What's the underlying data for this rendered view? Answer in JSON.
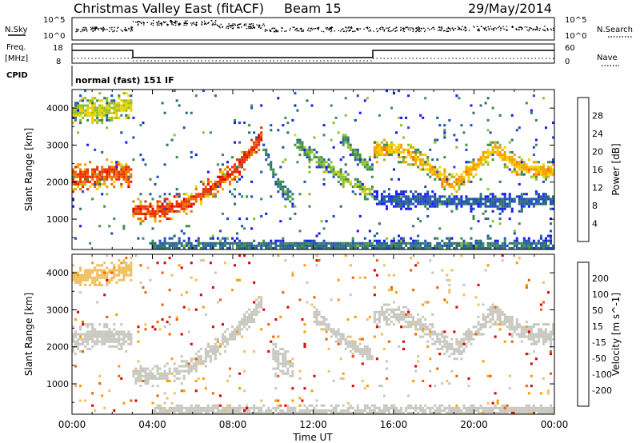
{
  "header": {
    "station": "Christmas Valley East (fitACF)",
    "beam": "Beam 15",
    "date": "29/May/2014"
  },
  "panels": {
    "nsky_label": "N.Sky",
    "nsky_ticks": [
      "10^5",
      "10^0"
    ],
    "nsearch_label": "N.Search",
    "nsearch_ticks": [
      "10^5",
      "10^0"
    ],
    "freq_label_1": "Freq.",
    "freq_label_2": "[MHz]",
    "freq_ticks": [
      "18",
      "8"
    ],
    "nave_label": "Nave",
    "nave_ticks": [
      "60",
      "0"
    ],
    "cpid_label": "CPID",
    "cpid_value": "normal (fast) 151 IF"
  },
  "colors": {
    "power": [
      "#1a1aff",
      "#1f4fc0",
      "#2e6e78",
      "#3f8f4f",
      "#8fc030",
      "#f0d000",
      "#f5a000",
      "#f07000",
      "#e83000",
      "#e00000"
    ],
    "velocity": [
      "#e00000",
      "#f06000",
      "#f5a000",
      "#f0c060",
      "#c8c8c0",
      "#c8c8c0",
      "#80c040",
      "#40a040",
      "#1f60c0",
      "#1a1aa0"
    ]
  },
  "chart_data": [
    {
      "type": "heatmap",
      "title": "Power",
      "ylabel": "Slant Range [km]",
      "colorbar_label": "Power [dB]",
      "colorbar_ticks": [
        "28",
        "24",
        "20",
        "16",
        "12",
        "8",
        "4"
      ],
      "colorbar_range": [
        0,
        32
      ],
      "ylim": [
        180,
        4500
      ],
      "yticks": [
        "4000",
        "3000",
        "2000",
        "1000"
      ],
      "xlim": [
        0,
        24
      ],
      "xticks": [
        "00:00",
        "04:00",
        "08:00",
        "12:00",
        "16:00",
        "20:00",
        "00:00"
      ],
      "xlabel": "",
      "bands": [
        {
          "x": [
            0,
            1,
            2,
            3
          ],
          "y": [
            2100,
            2150,
            2250,
            2150
          ],
          "w": 180,
          "v": 26
        },
        {
          "x": [
            3,
            4,
            5,
            6,
            7,
            8,
            9,
            9.5
          ],
          "y": [
            1250,
            1200,
            1300,
            1500,
            1900,
            2300,
            2900,
            3300
          ],
          "w": 140,
          "v": 27
        },
        {
          "x": [
            9.5,
            10,
            10.5,
            11
          ],
          "y": [
            3000,
            2300,
            1800,
            1500
          ],
          "w": 100,
          "v": 10
        },
        {
          "x": [
            11,
            12,
            13,
            14,
            15
          ],
          "y": [
            3100,
            2700,
            2300,
            1900,
            1700
          ],
          "w": 110,
          "v": 14
        },
        {
          "x": [
            13.5,
            14,
            14.5,
            15
          ],
          "y": [
            3200,
            2800,
            2500,
            2300
          ],
          "w": 90,
          "v": 12
        },
        {
          "x": [
            15,
            16,
            17,
            18,
            19,
            20,
            21,
            22,
            23,
            24
          ],
          "y": [
            2800,
            2900,
            2700,
            2300,
            1900,
            2400,
            2900,
            2500,
            2300,
            2300
          ],
          "w": 130,
          "v": 20
        },
        {
          "x": [
            15,
            18,
            21,
            24
          ],
          "y": [
            1550,
            1500,
            1450,
            1500
          ],
          "w": 120,
          "v": 6
        },
        {
          "x": [
            0,
            1.5,
            3
          ],
          "y": [
            3900,
            3950,
            4100
          ],
          "w": 160,
          "v": 16
        },
        {
          "x": [
            4,
            8,
            12,
            16,
            20,
            24
          ],
          "y": [
            280,
            260,
            250,
            260,
            270,
            280
          ],
          "w": 100,
          "v": 8
        }
      ]
    },
    {
      "type": "heatmap",
      "title": "Velocity",
      "ylabel": "Slant Range [km]",
      "colorbar_label": "Velocity [m s^-1]",
      "colorbar_ticks": [
        "200",
        "100",
        "50",
        "15",
        "-15",
        "-50",
        "-100",
        "-200"
      ],
      "colorbar_range": [
        -250,
        250
      ],
      "ylim": [
        180,
        4500
      ],
      "yticks": [
        "4000",
        "3000",
        "2000",
        "1000"
      ],
      "xlim": [
        0,
        24
      ],
      "xticks": [
        "00:00",
        "04:00",
        "08:00",
        "12:00",
        "16:00",
        "20:00",
        "00:00"
      ],
      "xlabel": "Time UT",
      "bands": [
        {
          "x": [
            0,
            1,
            2,
            3
          ],
          "y": [
            2200,
            2250,
            2300,
            2200
          ],
          "w": 170,
          "v": 0
        },
        {
          "x": [
            3,
            4,
            5,
            6,
            7,
            8,
            9,
            9.5
          ],
          "y": [
            1250,
            1200,
            1300,
            1500,
            1900,
            2300,
            2900,
            3300
          ],
          "w": 130,
          "v": -5
        },
        {
          "x": [
            10,
            10.5,
            11
          ],
          "y": [
            1800,
            1600,
            1400
          ],
          "w": 160,
          "v": 40
        },
        {
          "x": [
            12,
            13,
            14,
            15
          ],
          "y": [
            2900,
            2400,
            2000,
            1700
          ],
          "w": 100,
          "v": 30
        },
        {
          "x": [
            15,
            16,
            17,
            18,
            19,
            20,
            21,
            22,
            23,
            24
          ],
          "y": [
            2800,
            2900,
            2700,
            2300,
            1900,
            2400,
            2900,
            2500,
            2300,
            2300
          ],
          "w": 140,
          "v": 0
        },
        {
          "x": [
            0,
            1.5,
            3
          ],
          "y": [
            3900,
            3950,
            4100
          ],
          "w": 140,
          "v": -60
        },
        {
          "x": [
            4,
            8,
            12,
            16,
            20,
            24
          ],
          "y": [
            280,
            260,
            250,
            260,
            270,
            280
          ],
          "w": 90,
          "v": 30
        }
      ]
    }
  ]
}
